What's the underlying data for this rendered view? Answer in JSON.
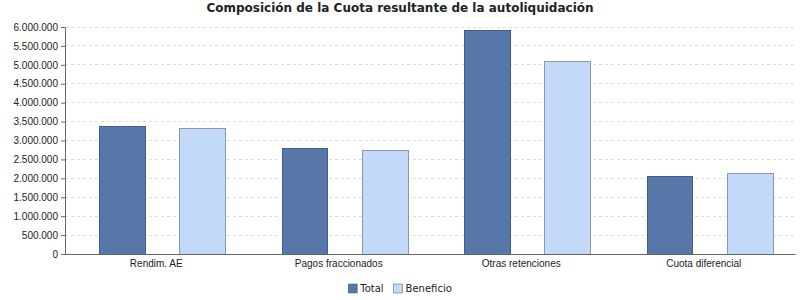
{
  "chart_data": {
    "type": "bar",
    "title": "Composición de la Cuota resultante de la autoliquidación",
    "categories": [
      "Rendim. AE",
      "Pagos fraccionados",
      "Otras retenciones",
      "Cuota diferencial"
    ],
    "series": [
      {
        "name": "Total",
        "color": "#5677a8",
        "values": [
          3370000,
          2790000,
          5920000,
          2050000
        ]
      },
      {
        "name": "Beneficio",
        "color": "#c2d9fa",
        "values": [
          3320000,
          2740000,
          5080000,
          2130000
        ]
      }
    ],
    "ylim": [
      0,
      6000000
    ],
    "yticks": [
      0,
      {
        "value": 500000,
        "label": "500.000"
      },
      {
        "value": 1000000,
        "label": "1.000.000"
      },
      {
        "value": 1500000,
        "label": "1.500.000"
      },
      {
        "value": 2000000,
        "label": "2.000.000"
      },
      {
        "value": 2500000,
        "label": "2.500.000"
      },
      {
        "value": 3000000,
        "label": "3.000.000"
      },
      {
        "value": 3500000,
        "label": "3.500.000"
      },
      {
        "value": 4000000,
        "label": "4.000.000"
      },
      {
        "value": 4500000,
        "label": "4.500.000"
      },
      {
        "value": 5000000,
        "label": "5.000.000"
      },
      {
        "value": 5500000,
        "label": "5.500.000"
      },
      {
        "value": 6000000,
        "label": "6.000.000"
      }
    ],
    "grid": true,
    "legend": "bottom"
  }
}
